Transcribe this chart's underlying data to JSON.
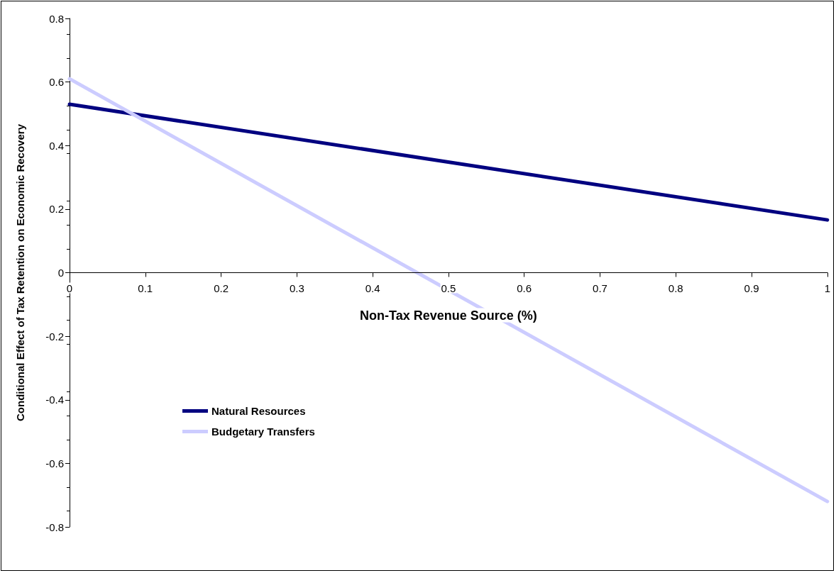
{
  "chart_data": {
    "type": "line",
    "xlabel": "Non-Tax Revenue Source (%)",
    "ylabel": "Conditional Effect of Tax Retention on Economic Recovery",
    "xlim": [
      0,
      1
    ],
    "xticks": [
      0,
      0.1,
      0.2,
      0.3,
      0.4,
      0.5,
      0.6,
      0.7,
      0.8,
      0.9,
      1
    ],
    "ylim": [
      -0.8,
      0.8
    ],
    "yticks": [
      -0.8,
      -0.6,
      -0.4,
      -0.2,
      0,
      0.2,
      0.4,
      0.6,
      0.8
    ],
    "x": [
      0,
      1
    ],
    "series": [
      {
        "name": "Natural Resources",
        "color": "#000080",
        "values": [
          0.53,
          0.166
        ]
      },
      {
        "name": "Budgetary Transfers",
        "color": "#ccccff",
        "values": [
          0.61,
          -0.72
        ]
      }
    ],
    "grid": false,
    "legend": "bottom left",
    "marker": "none",
    "line_style": "solid"
  }
}
